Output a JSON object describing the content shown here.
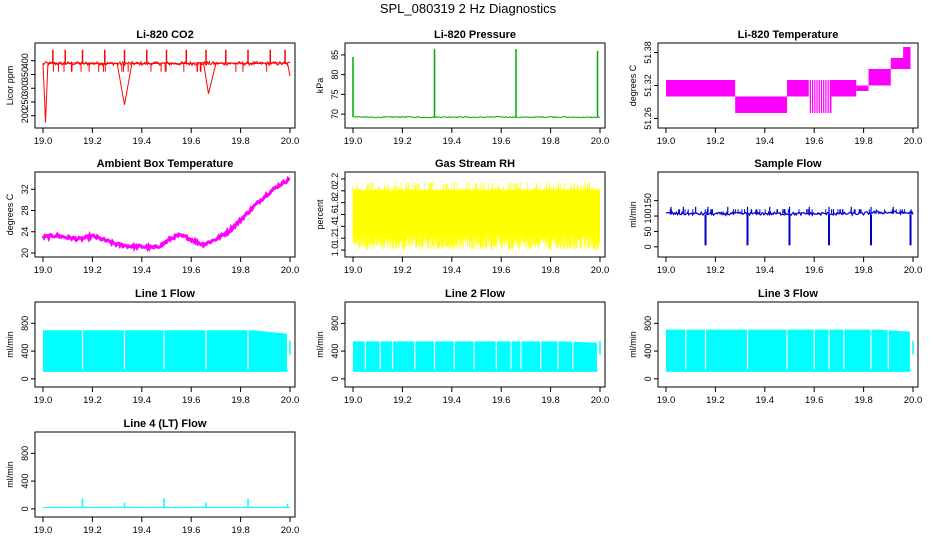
{
  "title": "SPL_080319  2 Hz Diagnostics",
  "colors": {
    "frame": "#000000",
    "background": "#ffffff"
  },
  "chart_data": [
    {
      "id": "co2",
      "type": "line",
      "title": "Li-820 CO2",
      "ylabel": "Licor ppm",
      "color": "#ff0000",
      "xlim": [
        19.0,
        20.0
      ],
      "ylim": [
        170,
        450
      ],
      "xticks": [
        19.0,
        19.2,
        19.4,
        19.6,
        19.8,
        20.0
      ],
      "yticks": [
        "200",
        "250",
        "300",
        "350",
        "400"
      ],
      "series": [
        {
          "x": [
            19.0,
            19.01,
            19.02,
            19.05,
            19.08,
            19.1,
            19.14,
            19.17,
            19.2,
            19.25,
            19.3,
            19.33,
            19.36,
            19.4,
            19.45,
            19.5,
            19.55,
            19.6,
            19.65,
            19.67,
            19.7,
            19.75,
            19.8,
            19.85,
            19.9,
            19.95,
            19.99,
            20.0
          ],
          "y": [
            390,
            175,
            390,
            392,
            388,
            391,
            393,
            389,
            392,
            390,
            391,
            240,
            390,
            389,
            390,
            392,
            389,
            391,
            393,
            280,
            390,
            392,
            391,
            390,
            391,
            392,
            390,
            345
          ]
        }
      ],
      "spikes_up_at": [
        19.04,
        19.09,
        19.16,
        19.25,
        19.33,
        19.42,
        19.5,
        19.58,
        19.66,
        19.74,
        19.83,
        19.92,
        19.98
      ],
      "spike_up_value": 440
    },
    {
      "id": "pressure",
      "type": "line",
      "title": "Li-820 Pressure",
      "ylabel": "kPa",
      "color": "#00aa00",
      "xlim": [
        19.0,
        20.0
      ],
      "ylim": [
        67.5,
        87
      ],
      "xticks": [
        19.0,
        19.2,
        19.4,
        19.6,
        19.8,
        20.0
      ],
      "yticks": [
        "70",
        "75",
        "80",
        "85"
      ],
      "series": [
        {
          "x": [
            19.0,
            19.1,
            19.2,
            19.3,
            19.4,
            19.5,
            19.6,
            19.7,
            19.8,
            19.9,
            20.0
          ],
          "y": [
            69.3,
            69.2,
            69.3,
            69.2,
            69.3,
            69.2,
            69.3,
            69.2,
            69.3,
            69.2,
            69.2
          ]
        }
      ],
      "spikes_up_at": [
        19.0,
        19.33,
        19.66,
        19.99
      ],
      "spike_up_values": [
        84.5,
        86.5,
        86.5,
        86.0
      ]
    },
    {
      "id": "licor-temp",
      "type": "area",
      "title": "Li-820 Temperature",
      "ylabel": "degrees C",
      "color": "#ff00ff",
      "xlim": [
        19.0,
        20.0
      ],
      "ylim": [
        51.25,
        51.39
      ],
      "xticks": [
        19.0,
        19.2,
        19.4,
        19.6,
        19.8,
        20.0
      ],
      "yticks": [
        "51.26",
        "51.32",
        "51.38"
      ],
      "bands": [
        {
          "x0": 19.0,
          "x1": 19.28,
          "low": 51.3,
          "high": 51.33
        },
        {
          "x0": 19.28,
          "x1": 19.49,
          "low": 51.27,
          "high": 51.3
        },
        {
          "x0": 19.49,
          "x1": 19.77,
          "low": 51.3,
          "high": 51.33
        },
        {
          "x0": 19.58,
          "x1": 19.67,
          "low": 51.27,
          "high": 51.3
        },
        {
          "x0": 19.77,
          "x1": 19.82,
          "low": 51.31,
          "high": 51.32
        },
        {
          "x0": 19.82,
          "x1": 19.91,
          "low": 51.32,
          "high": 51.35
        },
        {
          "x0": 19.91,
          "x1": 19.99,
          "low": 51.35,
          "high": 51.37
        },
        {
          "x0": 19.96,
          "x1": 19.99,
          "low": 51.37,
          "high": 51.39
        }
      ]
    },
    {
      "id": "ambient-temp",
      "type": "line",
      "title": "Ambient Box Temperature",
      "ylabel": "degrees C",
      "color": "#ff00ff",
      "xlim": [
        19.0,
        20.0
      ],
      "ylim": [
        20,
        34.5
      ],
      "xticks": [
        19.0,
        19.2,
        19.4,
        19.6,
        19.8,
        20.0
      ],
      "yticks": [
        "20",
        "24",
        "28",
        "32"
      ],
      "series": [
        {
          "x": [
            19.0,
            19.05,
            19.1,
            19.15,
            19.2,
            19.25,
            19.3,
            19.35,
            19.4,
            19.45,
            19.48,
            19.52,
            19.55,
            19.58,
            19.62,
            19.65,
            19.7,
            19.75,
            19.8,
            19.85,
            19.9,
            19.95,
            20.0
          ],
          "y": [
            23.0,
            23.3,
            22.9,
            22.6,
            23.2,
            22.4,
            21.6,
            21.3,
            21.2,
            21.0,
            21.5,
            22.8,
            23.3,
            23.0,
            22.1,
            21.6,
            22.6,
            24.0,
            26.2,
            28.6,
            30.8,
            32.6,
            34.0
          ]
        }
      ]
    },
    {
      "id": "rh",
      "type": "line",
      "title": "Gas Stream RH",
      "ylabel": "percent",
      "color": "#ffff00",
      "xlim": [
        19.0,
        20.0
      ],
      "ylim": [
        0.95,
        2.25
      ],
      "xticks": [
        19.0,
        19.2,
        19.4,
        19.6,
        19.8,
        20.0
      ],
      "yticks": [
        "1.0",
        "1.2",
        "1.4",
        "1.6",
        "1.8",
        "2.0",
        "2.2"
      ],
      "noise": {
        "low": 1.0,
        "high": 2.15,
        "typical_low": 1.25,
        "typical_high": 2.0
      }
    },
    {
      "id": "sample-flow",
      "type": "line",
      "title": "Sample Flow",
      "ylabel": "ml/min",
      "color": "#0000cc",
      "xlim": [
        19.0,
        20.0
      ],
      "ylim": [
        -20,
        230
      ],
      "xticks": [
        19.0,
        19.2,
        19.4,
        19.6,
        19.8,
        20.0
      ],
      "yticks": [
        "0",
        "50",
        "100",
        "150"
      ],
      "series": [
        {
          "x": [
            19.0,
            19.2,
            19.4,
            19.6,
            19.8,
            19.85,
            20.0
          ],
          "y": [
            108,
            107,
            108,
            107,
            108,
            112,
            110
          ]
        }
      ],
      "spikes_up_at": [
        19.02,
        19.07,
        19.12,
        19.17,
        19.25,
        19.33,
        19.42,
        19.5,
        19.58,
        19.66,
        19.75,
        19.83,
        19.92
      ],
      "spike_up_value": 130,
      "dips_at": [
        19.16,
        19.33,
        19.5,
        19.66,
        19.83,
        19.99
      ],
      "dip_value": 5
    },
    {
      "id": "line1",
      "type": "area",
      "title": "Line 1 Flow",
      "ylabel": "ml/min",
      "color": "#00ffff",
      "xlim": [
        19.0,
        20.0
      ],
      "ylim": [
        -60,
        1050
      ],
      "xticks": [
        19.0,
        19.2,
        19.4,
        19.6,
        19.8,
        20.0
      ],
      "yticks": [
        "0",
        "400",
        "800"
      ],
      "band": {
        "low": 100,
        "high": 700,
        "high_end": 650
      },
      "gaps_at": [
        19.16,
        19.33,
        19.49,
        19.66,
        19.83,
        19.99
      ]
    },
    {
      "id": "line2",
      "type": "area",
      "title": "Line 2 Flow",
      "ylabel": "ml/min",
      "color": "#00ffff",
      "xlim": [
        19.0,
        20.0
      ],
      "ylim": [
        -60,
        1050
      ],
      "xticks": [
        19.0,
        19.2,
        19.4,
        19.6,
        19.8,
        20.0
      ],
      "yticks": [
        "0",
        "400",
        "800"
      ],
      "band": {
        "low": 100,
        "high": 540,
        "high_end": 520
      },
      "gaps_at": [
        19.05,
        19.11,
        19.16,
        19.25,
        19.33,
        19.41,
        19.49,
        19.58,
        19.64,
        19.68,
        19.76,
        19.83,
        19.89,
        19.99
      ]
    },
    {
      "id": "line3",
      "type": "area",
      "title": "Line 3 Flow",
      "ylabel": "ml/min",
      "color": "#00ffff",
      "xlim": [
        19.0,
        20.0
      ],
      "ylim": [
        -60,
        1050
      ],
      "xticks": [
        19.0,
        19.2,
        19.4,
        19.6,
        19.8,
        20.0
      ],
      "yticks": [
        "0",
        "400",
        "800"
      ],
      "band": {
        "low": 100,
        "high": 710,
        "high_end": 680
      },
      "gaps_at": [
        19.08,
        19.16,
        19.33,
        19.49,
        19.6,
        19.66,
        19.72,
        19.83,
        19.9,
        19.99
      ]
    },
    {
      "id": "line4",
      "type": "line",
      "title": "Line 4 (LT) Flow",
      "ylabel": "ml/min",
      "color": "#00ffff",
      "xlim": [
        19.0,
        20.0
      ],
      "ylim": [
        -60,
        1050
      ],
      "xticks": [
        19.0,
        19.2,
        19.4,
        19.6,
        19.8,
        20.0
      ],
      "yticks": [
        "0",
        "400",
        "800"
      ],
      "series": [
        {
          "x": [
            19.0,
            20.0
          ],
          "y": [
            20,
            20
          ]
        }
      ],
      "spikes_up_at": [
        19.16,
        19.33,
        19.49,
        19.66,
        19.83,
        19.99
      ],
      "spike_up_values": [
        150,
        90,
        150,
        90,
        150,
        70
      ]
    }
  ]
}
